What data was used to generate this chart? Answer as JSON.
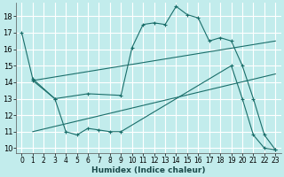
{
  "xlabel": "Humidex (Indice chaleur)",
  "bg_color": "#c2ecec",
  "grid_color": "#ffffff",
  "line_color": "#1a6e6a",
  "xlim": [
    -0.5,
    23.5
  ],
  "ylim": [
    9.7,
    18.8
  ],
  "yticks": [
    10,
    11,
    12,
    13,
    14,
    15,
    16,
    17,
    18
  ],
  "xticks": [
    0,
    1,
    2,
    3,
    4,
    5,
    6,
    7,
    8,
    9,
    10,
    11,
    12,
    13,
    14,
    15,
    16,
    17,
    18,
    19,
    20,
    21,
    22,
    23
  ],
  "series": [
    {
      "x": [
        0,
        1,
        3,
        4,
        5,
        6,
        7,
        8,
        9,
        19,
        20,
        21,
        22,
        23
      ],
      "y": [
        17.0,
        14.2,
        13.0,
        11.0,
        10.8,
        11.2,
        11.1,
        11.0,
        11.0,
        15.0,
        13.0,
        10.8,
        10.0,
        9.9
      ],
      "markers": true
    },
    {
      "x": [
        1,
        3,
        6,
        9,
        10,
        11,
        12,
        13,
        14,
        15,
        16,
        17,
        18,
        19,
        20,
        21,
        22,
        23
      ],
      "y": [
        14.1,
        13.0,
        13.3,
        13.2,
        16.1,
        17.5,
        17.6,
        17.5,
        18.6,
        18.1,
        17.9,
        16.5,
        16.7,
        16.5,
        15.0,
        13.0,
        10.8,
        9.9
      ],
      "markers": true
    },
    {
      "x": [
        1,
        23
      ],
      "y": [
        14.1,
        16.5
      ],
      "markers": false
    },
    {
      "x": [
        1,
        23
      ],
      "y": [
        11.0,
        14.5
      ],
      "markers": false
    }
  ]
}
